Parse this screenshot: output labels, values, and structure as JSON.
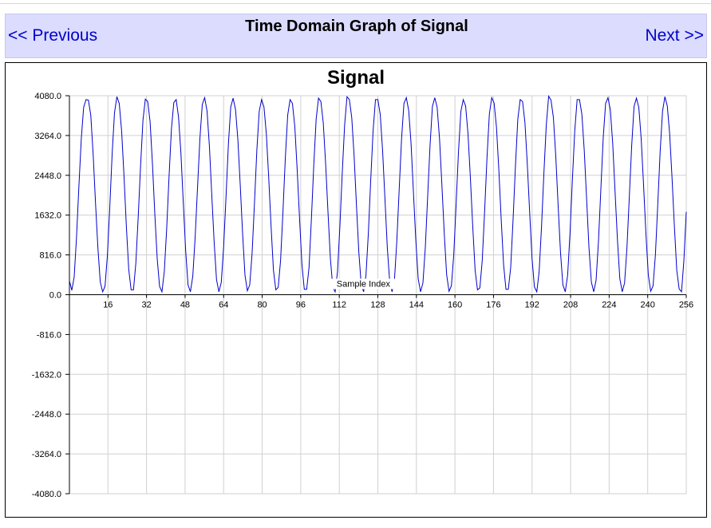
{
  "nav": {
    "prev_label": "<< Previous",
    "next_label": "Next >>",
    "title": "Time Domain Graph of Signal"
  },
  "chart_data": {
    "type": "line",
    "title": "Signal",
    "xlabel": "Sample Index",
    "ylabel": "",
    "xlim": [
      0,
      256
    ],
    "ylim": [
      -4080,
      4080
    ],
    "x_ticks": [
      16,
      32,
      48,
      64,
      80,
      96,
      112,
      128,
      144,
      160,
      176,
      192,
      208,
      224,
      240,
      256
    ],
    "y_ticks": [
      "4080.0",
      "3264.0",
      "2448.0",
      "1632.0",
      "816.0",
      "0.0",
      "-816.0",
      "-1632.0",
      "-2448.0",
      "-3264.0",
      "-4080.0"
    ],
    "grid": true,
    "line_color": "#0000cc",
    "series": [
      {
        "values": [
          286,
          90,
          360,
          1188,
          2226,
          3200,
          3844,
          4000,
          3990,
          3680,
          2880,
          1880,
          960,
          260,
          60,
          170,
          800,
          1780,
          2880,
          3730,
          4060,
          3920,
          3360,
          2440,
          1400,
          520,
          100,
          100,
          650,
          1600,
          2650,
          3580,
          4010,
          3960,
          3550,
          2680,
          1650,
          740,
          170,
          60,
          480,
          1360,
          2430,
          3400,
          3940,
          4000,
          3640,
          2900,
          1880,
          900,
          200,
          60,
          380,
          1180,
          2200,
          3200,
          3900,
          4040,
          3770,
          3050,
          2050,
          1080,
          310,
          60,
          250,
          980,
          2000,
          3080,
          3850,
          4030,
          3800,
          3180,
          2250,
          1250,
          400,
          80,
          200,
          850,
          1880,
          2960,
          3760,
          4000,
          3850,
          3300,
          2400,
          1400,
          500,
          100,
          150,
          700,
          1700,
          2800,
          3680,
          4000,
          3920,
          3450,
          2560,
          1560,
          620,
          110,
          110,
          560,
          1560,
          2660,
          3600,
          4030,
          3960,
          3520,
          2680,
          1680,
          740,
          160,
          60,
          470,
          1400,
          2500,
          3480,
          4060,
          4000,
          3630,
          2840,
          1820,
          860,
          200,
          60,
          400,
          1260,
          2350,
          3360,
          4000,
          4000,
          3700,
          2960,
          1960,
          960,
          260,
          60,
          300,
          1100,
          2160,
          3200,
          3920,
          4040,
          3780,
          3100,
          2100,
          1120,
          330,
          60,
          240,
          960,
          2010,
          3060,
          3860,
          4040,
          3840,
          3200,
          2250,
          1250,
          410,
          70,
          180,
          820,
          1860,
          2940,
          3760,
          4000,
          3870,
          3300,
          2400,
          1400,
          500,
          100,
          140,
          700,
          1700,
          2800,
          3700,
          4040,
          3930,
          3440,
          2560,
          1540,
          620,
          110,
          110,
          560,
          1540,
          2640,
          3600,
          4000,
          3960,
          3530,
          2680,
          1680,
          740,
          160,
          60,
          480,
          1400,
          2500,
          3480,
          4070,
          3990,
          3630,
          2840,
          1820,
          860,
          200,
          60,
          400,
          1260,
          2360,
          3360,
          4000,
          4000,
          3700,
          2960,
          1960,
          960,
          260,
          60,
          300,
          1100,
          2160,
          3220,
          3920,
          4040,
          3790,
          3100,
          2100,
          1120,
          330,
          60,
          240,
          960,
          2010,
          3060,
          3860,
          4030,
          3840,
          3200,
          2250,
          1250,
          410,
          70,
          180,
          820,
          1860,
          2940,
          3760,
          4060,
          3870,
          3300,
          2400,
          1400,
          500,
          120,
          60,
          700,
          1700
        ]
      }
    ]
  }
}
